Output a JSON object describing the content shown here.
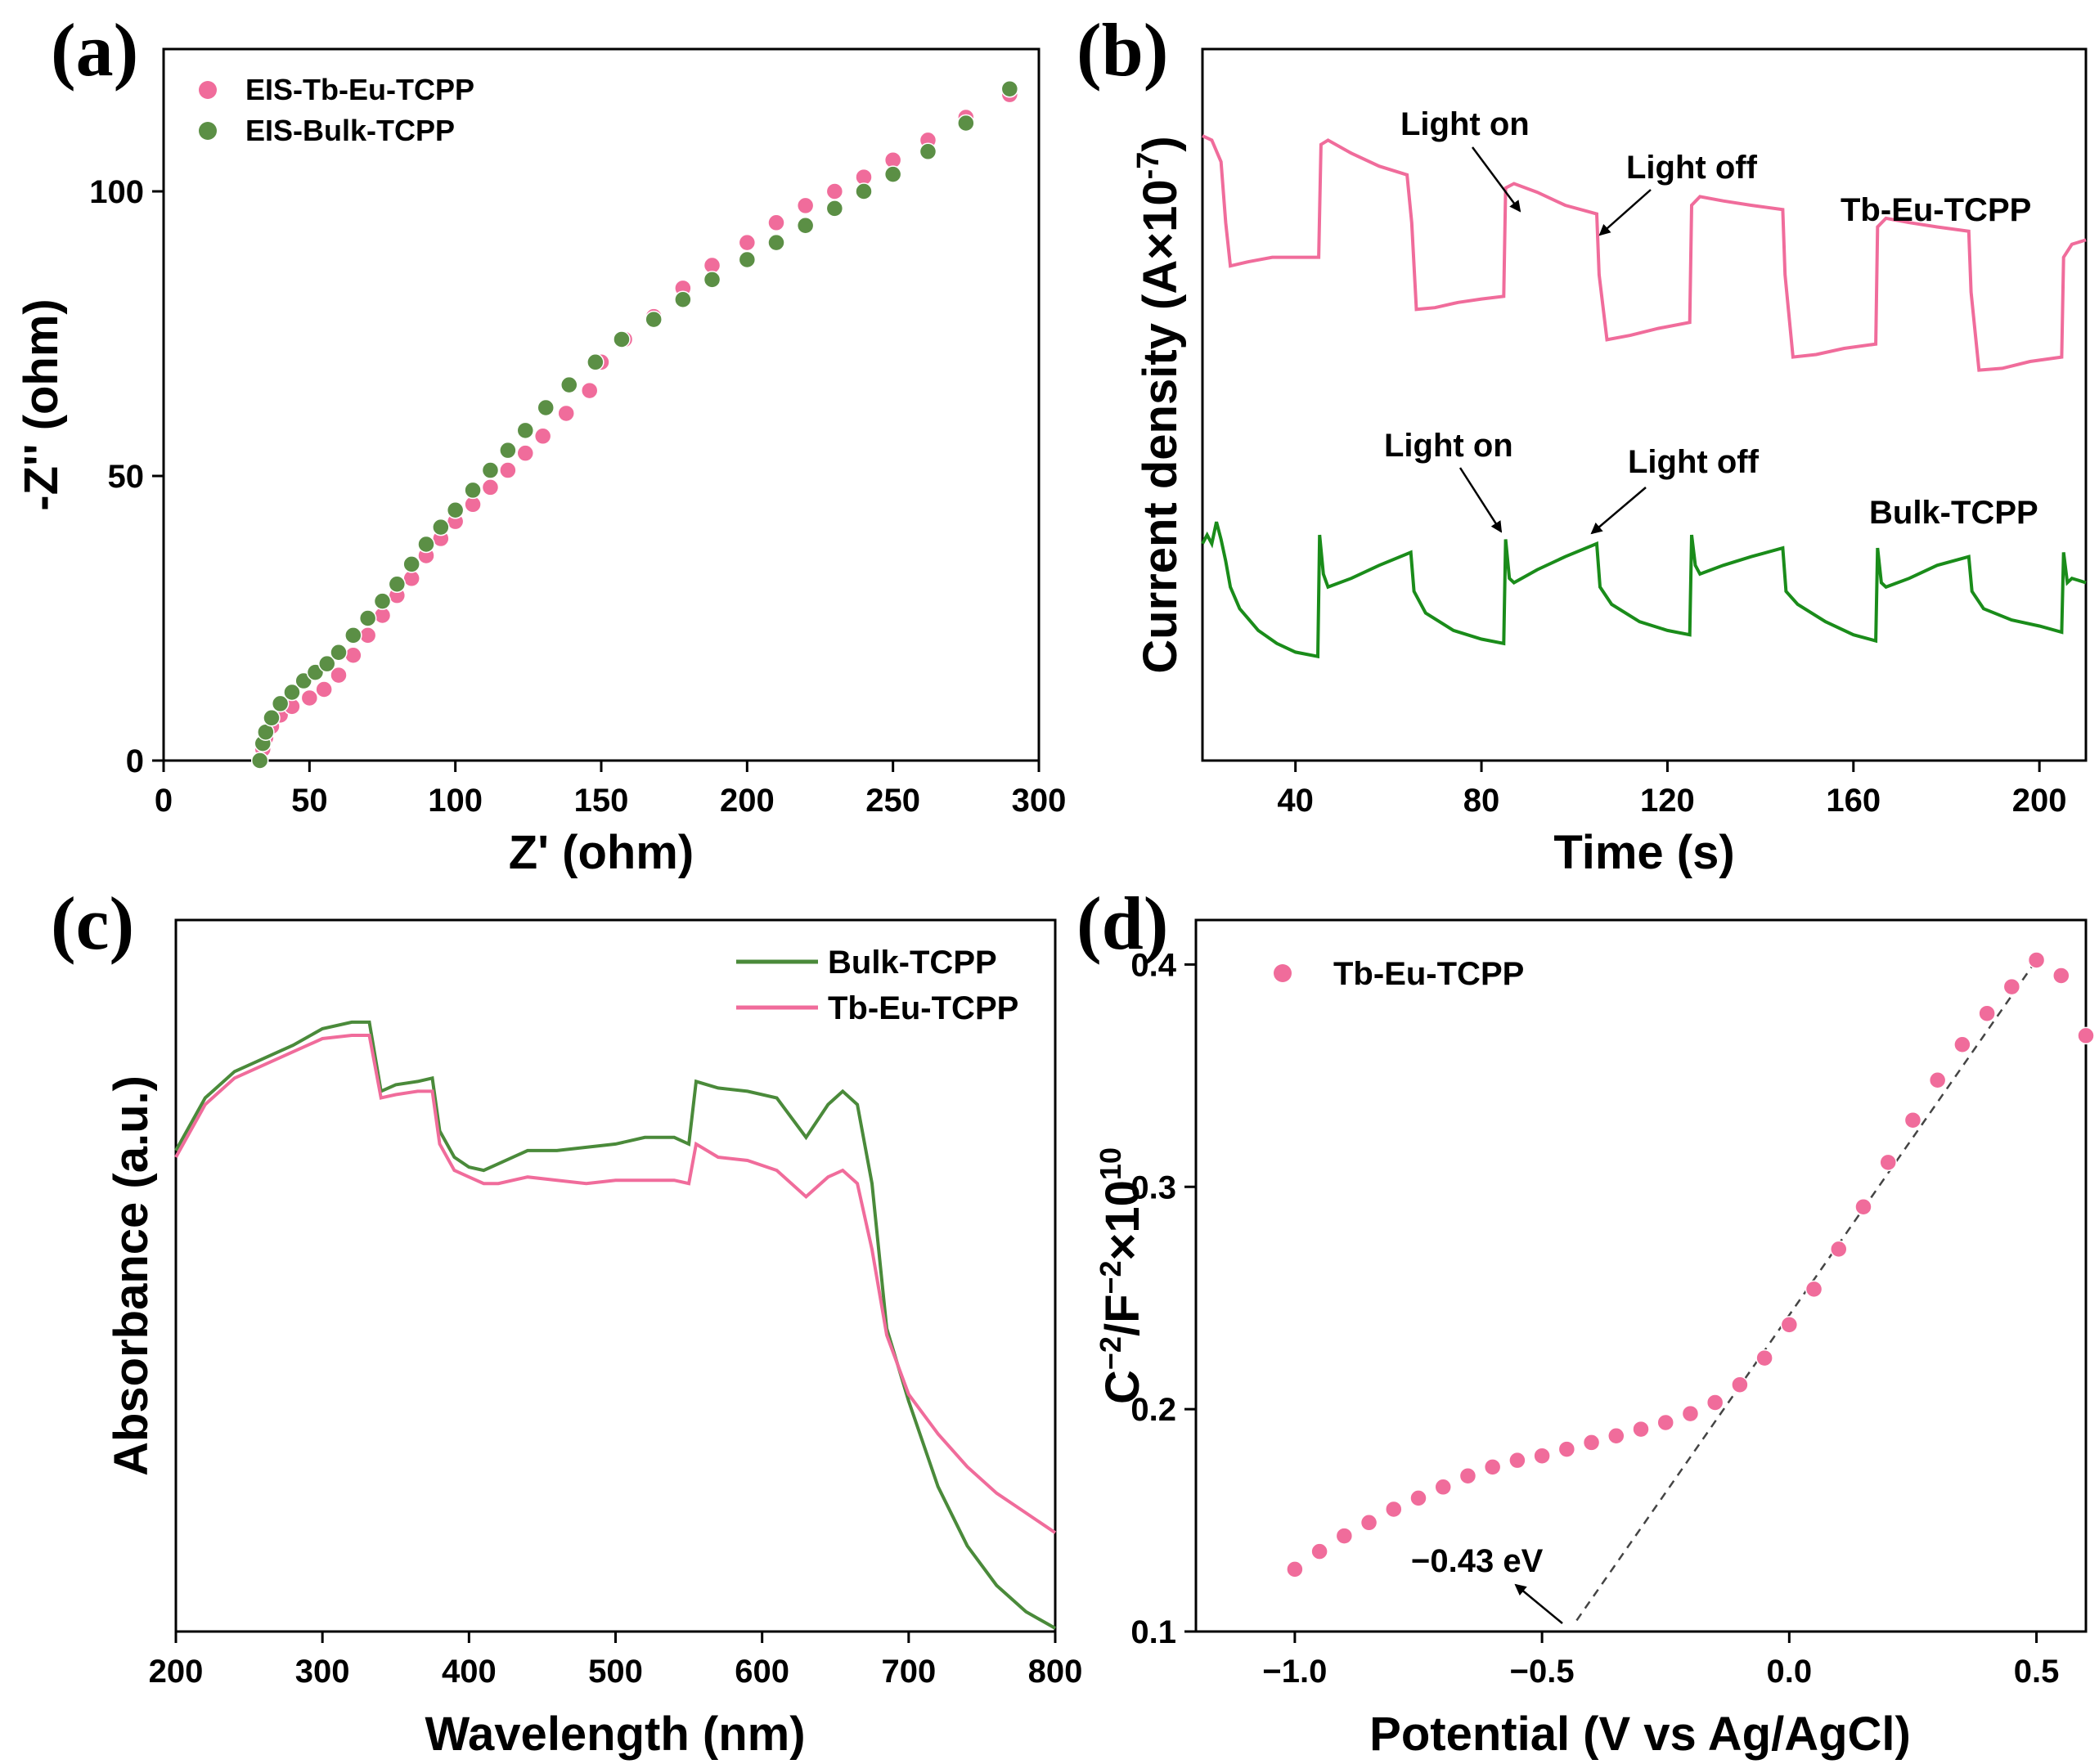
{
  "chart_data": [
    {
      "panel": "(a)",
      "type": "scatter",
      "xlabel": "Z' (ohm)",
      "ylabel": "-Z'' (ohm)",
      "xlim": [
        0,
        300
      ],
      "ylim": [
        0,
        125
      ],
      "xticks": [
        0,
        50,
        100,
        150,
        200,
        250,
        300
      ],
      "yticks": [
        0,
        50,
        100
      ],
      "legend_position": "top-left",
      "series": [
        {
          "name": "EIS-Tb-Eu-TCPP",
          "color": "#f06c9b",
          "x": [
            33,
            34,
            35,
            37,
            40,
            44,
            50,
            55,
            60,
            65,
            70,
            75,
            80,
            85,
            90,
            95,
            100,
            106,
            112,
            118,
            124,
            130,
            138,
            146,
            150,
            158,
            168,
            178,
            188,
            200,
            210,
            220,
            230,
            240,
            250,
            262,
            275,
            290
          ],
          "y": [
            0,
            2,
            4,
            6,
            8,
            9.5,
            11,
            12.5,
            15,
            18.5,
            22,
            25.5,
            29,
            32,
            36,
            39,
            42,
            45,
            48,
            51,
            54,
            57,
            61,
            65,
            70,
            74,
            78,
            83,
            87,
            91,
            94.5,
            97.5,
            100,
            102.5,
            105.5,
            109,
            113,
            117
          ]
        },
        {
          "name": "EIS-Bulk-TCPP",
          "color": "#5b8f45",
          "x": [
            33,
            34,
            35,
            37,
            40,
            44,
            48,
            52,
            56,
            60,
            65,
            70,
            75,
            80,
            85,
            90,
            95,
            100,
            106,
            112,
            118,
            124,
            131,
            139,
            148,
            157,
            168,
            178,
            188,
            200,
            210,
            220,
            230,
            240,
            250,
            262,
            275,
            290
          ],
          "y": [
            0,
            3,
            5,
            7.5,
            10,
            12,
            14,
            15.5,
            17,
            19,
            22,
            25,
            28,
            31,
            34.5,
            38,
            41,
            44,
            47.5,
            51,
            54.5,
            58,
            62,
            66,
            70,
            74,
            77.5,
            81,
            84.5,
            88,
            91,
            94,
            97,
            100,
            103,
            107,
            112,
            118
          ]
        }
      ]
    },
    {
      "panel": "(b)",
      "type": "line",
      "xlabel": "Time (s)",
      "ylabel": "Current density (A×10",
      "ylabel_sup": "-7",
      "ylabel_close": ")",
      "xlim": [
        20,
        210
      ],
      "xticks": [
        40,
        80,
        120,
        160,
        200
      ],
      "series": [
        {
          "name": "Tb-Eu-TCPP",
          "color": "#f06c9b",
          "x": [
            20,
            22,
            24,
            25,
            26,
            30,
            35,
            40,
            45,
            45.5,
            47,
            52,
            58,
            64,
            65,
            66,
            70,
            75,
            80,
            84.8,
            85.2,
            87,
            92,
            98,
            104.8,
            105.3,
            107,
            112,
            118,
            124.8,
            125.2,
            127,
            132,
            138,
            144.8,
            145.3,
            147,
            152,
            158,
            164.8,
            165.2,
            167,
            172,
            178,
            184.8,
            185.3,
            187,
            192,
            198,
            204.8,
            205.2,
            207,
            210
          ],
          "y": [
            7.2,
            7.15,
            6.9,
            6.2,
            5.7,
            5.75,
            5.8,
            5.8,
            5.8,
            7.1,
            7.15,
            7.0,
            6.85,
            6.75,
            6.2,
            5.2,
            5.22,
            5.28,
            5.32,
            5.35,
            6.6,
            6.65,
            6.55,
            6.4,
            6.3,
            5.6,
            4.85,
            4.9,
            4.98,
            5.05,
            6.4,
            6.5,
            6.45,
            6.4,
            6.35,
            5.6,
            4.65,
            4.68,
            4.75,
            4.8,
            6.15,
            6.25,
            6.2,
            6.15,
            6.1,
            5.4,
            4.5,
            4.52,
            4.6,
            4.65,
            5.8,
            5.95,
            6.0
          ]
        },
        {
          "name": "Bulk-TCPP",
          "color": "#1a8c1a",
          "x": [
            20,
            21,
            22,
            23,
            24,
            25,
            26,
            28,
            32,
            36,
            40,
            44.8,
            45.2,
            46,
            47,
            52,
            58,
            64.8,
            65.5,
            68,
            74,
            80,
            84.8,
            85.2,
            86,
            87,
            92,
            98,
            104.8,
            105.5,
            108,
            114,
            120,
            124.8,
            125.2,
            126,
            127,
            132,
            138,
            144.8,
            145.5,
            148,
            154,
            160,
            164.8,
            165.2,
            166,
            167,
            172,
            178,
            184.8,
            185.5,
            188,
            194,
            200,
            204.8,
            205.2,
            206,
            207,
            210
          ],
          "y": [
            2.5,
            2.6,
            2.5,
            2.75,
            2.55,
            2.3,
            2.0,
            1.75,
            1.5,
            1.35,
            1.25,
            1.2,
            2.6,
            2.15,
            2.0,
            2.1,
            2.25,
            2.4,
            1.95,
            1.7,
            1.5,
            1.4,
            1.35,
            2.55,
            2.1,
            2.05,
            2.2,
            2.35,
            2.5,
            2.0,
            1.8,
            1.6,
            1.5,
            1.45,
            2.6,
            2.25,
            2.15,
            2.25,
            2.35,
            2.45,
            1.95,
            1.8,
            1.6,
            1.45,
            1.38,
            2.45,
            2.05,
            2.0,
            2.1,
            2.25,
            2.35,
            1.95,
            1.75,
            1.62,
            1.55,
            1.48,
            2.4,
            2.05,
            2.1,
            2.05
          ]
        }
      ],
      "annotations": [
        "Light on",
        "Light off",
        "Light on",
        "Light off"
      ]
    },
    {
      "panel": "(c)",
      "type": "line",
      "xlabel": "Wavelength (nm)",
      "ylabel": "Absorbance (a.u.)",
      "xlim": [
        200,
        800
      ],
      "ylim": [
        0,
        1
      ],
      "xticks": [
        200,
        300,
        400,
        500,
        600,
        700,
        800
      ],
      "legend_position": "top-right",
      "series": [
        {
          "name": "Bulk-TCPP",
          "color": "#4a8a3a",
          "x": [
            200,
            220,
            240,
            260,
            280,
            300,
            320,
            332,
            340,
            350,
            365,
            375,
            380,
            390,
            400,
            410,
            420,
            440,
            460,
            480,
            500,
            520,
            540,
            550,
            555,
            570,
            590,
            610,
            630,
            645,
            655,
            665,
            675,
            685,
            700,
            720,
            740,
            760,
            780,
            800
          ],
          "y": [
            0.73,
            0.81,
            0.85,
            0.87,
            0.89,
            0.915,
            0.925,
            0.925,
            0.82,
            0.83,
            0.835,
            0.84,
            0.76,
            0.72,
            0.705,
            0.7,
            0.71,
            0.73,
            0.73,
            0.735,
            0.74,
            0.75,
            0.75,
            0.74,
            0.835,
            0.825,
            0.82,
            0.81,
            0.75,
            0.8,
            0.82,
            0.8,
            0.68,
            0.46,
            0.35,
            0.22,
            0.13,
            0.07,
            0.03,
            0.005
          ]
        },
        {
          "name": "Tb-Eu-TCPP",
          "color": "#f06c9b",
          "x": [
            200,
            220,
            240,
            260,
            280,
            300,
            320,
            332,
            340,
            350,
            365,
            375,
            380,
            390,
            400,
            410,
            420,
            440,
            460,
            480,
            500,
            520,
            540,
            550,
            555,
            570,
            590,
            610,
            630,
            645,
            655,
            665,
            675,
            685,
            700,
            720,
            740,
            760,
            780,
            800
          ],
          "y": [
            0.72,
            0.8,
            0.84,
            0.86,
            0.88,
            0.9,
            0.905,
            0.905,
            0.81,
            0.815,
            0.82,
            0.82,
            0.74,
            0.7,
            0.69,
            0.68,
            0.68,
            0.69,
            0.685,
            0.68,
            0.685,
            0.685,
            0.685,
            0.68,
            0.74,
            0.72,
            0.715,
            0.7,
            0.66,
            0.69,
            0.7,
            0.68,
            0.58,
            0.45,
            0.36,
            0.3,
            0.25,
            0.21,
            0.18,
            0.15
          ]
        }
      ]
    },
    {
      "panel": "(d)",
      "type": "scatter",
      "xlabel": "Potential (V vs Ag/AgCl)",
      "ylabel": "C",
      "ylabel_sup1": "−2",
      "ylabel_mid": "/F",
      "ylabel_sup2": "−2",
      "ylabel_times": "×10",
      "ylabel_sup3": "10",
      "xlim": [
        -1.2,
        0.6
      ],
      "ylim": [
        0.1,
        0.42
      ],
      "xticks": [
        -1.0,
        -0.5,
        0.0,
        0.5
      ],
      "xtick_labels": [
        "−1.0",
        "−0.5",
        "0.0",
        "0.5"
      ],
      "yticks": [
        0.1,
        0.2,
        0.3,
        0.4
      ],
      "ytick_labels": [
        "0.1",
        "0.2",
        "0.3",
        "0.4"
      ],
      "legend_position": "top-left",
      "series": [
        {
          "name": "Tb-Eu-TCPP",
          "color": "#f06c9b",
          "x": [
            -1.0,
            -0.95,
            -0.9,
            -0.85,
            -0.8,
            -0.75,
            -0.7,
            -0.65,
            -0.6,
            -0.55,
            -0.5,
            -0.45,
            -0.4,
            -0.35,
            -0.3,
            -0.25,
            -0.2,
            -0.15,
            -0.1,
            -0.05,
            0.0,
            0.05,
            0.1,
            0.15,
            0.2,
            0.25,
            0.3,
            0.35,
            0.4,
            0.45,
            0.5,
            0.55,
            0.6
          ],
          "y": [
            0.128,
            0.136,
            0.143,
            0.149,
            0.155,
            0.16,
            0.165,
            0.17,
            0.174,
            0.177,
            0.179,
            0.182,
            0.185,
            0.188,
            0.191,
            0.194,
            0.198,
            0.203,
            0.211,
            0.223,
            0.238,
            0.254,
            0.272,
            0.291,
            0.311,
            0.33,
            0.348,
            0.364,
            0.378,
            0.39,
            0.402,
            0.395,
            0.368
          ]
        }
      ],
      "fit_line": {
        "x": [
          -0.43,
          0.5
        ],
        "y": [
          0.105,
          0.402
        ]
      },
      "annotation": "−0.43 eV"
    }
  ],
  "panels": {
    "a": {
      "label": "(a)"
    },
    "b": {
      "label": "(b)"
    },
    "c": {
      "label": "(c)"
    },
    "d": {
      "label": "(d)"
    }
  }
}
